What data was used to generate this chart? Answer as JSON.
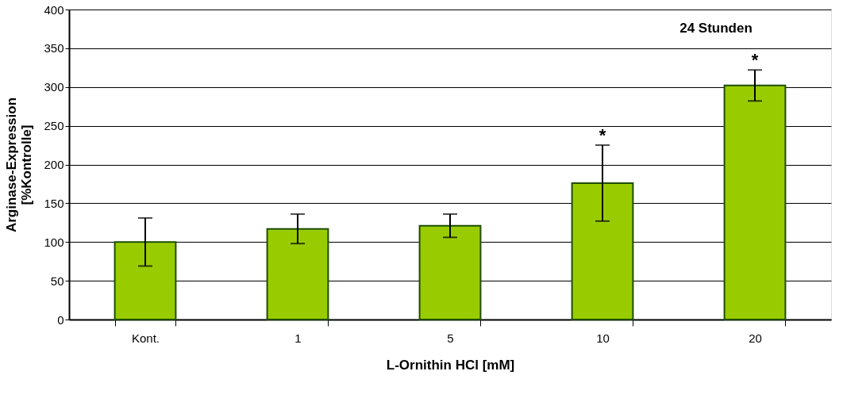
{
  "chart_data": {
    "type": "bar",
    "xlabel": "L-Ornithin HCl [mM]",
    "ylabel": "Arginase-Expression\n[%Kontrolle]",
    "categories": [
      "Kont.",
      "1",
      "5",
      "10",
      "20"
    ],
    "values": [
      100,
      117,
      121,
      176,
      302
    ],
    "errors": [
      31,
      19,
      15,
      49,
      20
    ],
    "color": "#99cc00",
    "ylim": [
      0,
      400
    ],
    "yticks": [
      0,
      50,
      100,
      150,
      200,
      250,
      300,
      350,
      400
    ],
    "grid": "y",
    "annotations": [
      "24 Stunden",
      {
        "text": "*",
        "x": "10",
        "y": 225
      },
      {
        "text": "*",
        "x": "20",
        "y": 322
      }
    ]
  }
}
